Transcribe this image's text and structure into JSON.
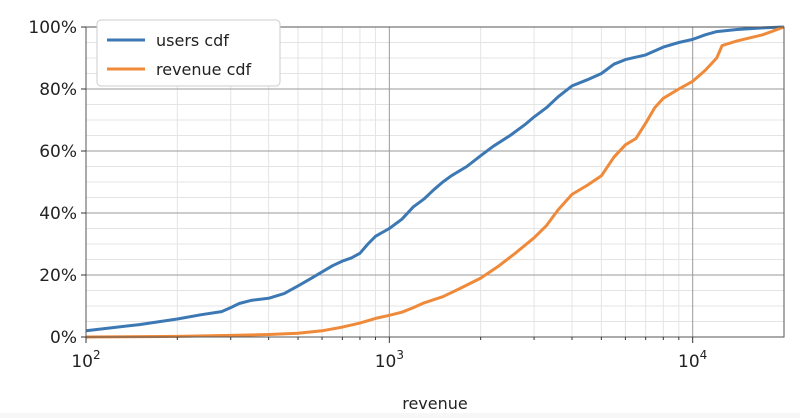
{
  "chart_data": {
    "type": "line",
    "title": "",
    "xlabel": "revenue",
    "ylabel": "",
    "x_scale": "log",
    "xlim": [
      100,
      20000
    ],
    "ylim": [
      0,
      100
    ],
    "x_ticks": [
      {
        "value": 100,
        "base": "10",
        "exp": "2"
      },
      {
        "value": 1000,
        "base": "10",
        "exp": "3"
      },
      {
        "value": 10000,
        "base": "10",
        "exp": "4"
      }
    ],
    "y_ticks": [
      {
        "value": 0,
        "label": "0%"
      },
      {
        "value": 20,
        "label": "20%"
      },
      {
        "value": 40,
        "label": "40%"
      },
      {
        "value": 60,
        "label": "60%"
      },
      {
        "value": 80,
        "label": "80%"
      },
      {
        "value": 100,
        "label": "100%"
      }
    ],
    "grid": true,
    "legend_position": "top-left",
    "series": [
      {
        "name": "users cdf",
        "color": "#3c78b4",
        "points": [
          [
            100,
            2
          ],
          [
            150,
            4
          ],
          [
            200,
            5.8
          ],
          [
            240,
            7.2
          ],
          [
            280,
            8.2
          ],
          [
            300,
            9.5
          ],
          [
            320,
            10.8
          ],
          [
            350,
            11.8
          ],
          [
            400,
            12.5
          ],
          [
            450,
            14
          ],
          [
            500,
            16.5
          ],
          [
            550,
            18.8
          ],
          [
            600,
            21
          ],
          [
            650,
            23
          ],
          [
            700,
            24.5
          ],
          [
            750,
            25.5
          ],
          [
            800,
            27
          ],
          [
            850,
            30
          ],
          [
            900,
            32.5
          ],
          [
            1000,
            35
          ],
          [
            1100,
            38
          ],
          [
            1200,
            42
          ],
          [
            1300,
            44.5
          ],
          [
            1400,
            47.5
          ],
          [
            1500,
            50
          ],
          [
            1600,
            52
          ],
          [
            1800,
            55
          ],
          [
            2000,
            58.5
          ],
          [
            2200,
            61.5
          ],
          [
            2500,
            65
          ],
          [
            2800,
            68.5
          ],
          [
            3000,
            71
          ],
          [
            3300,
            74
          ],
          [
            3600,
            77.5
          ],
          [
            4000,
            81
          ],
          [
            4500,
            83
          ],
          [
            5000,
            85
          ],
          [
            5500,
            88
          ],
          [
            6000,
            89.5
          ],
          [
            7000,
            91
          ],
          [
            8000,
            93.5
          ],
          [
            9000,
            95
          ],
          [
            10000,
            96
          ],
          [
            11000,
            97.5
          ],
          [
            12000,
            98.5
          ],
          [
            14000,
            99.2
          ],
          [
            17000,
            99.7
          ],
          [
            20000,
            100
          ]
        ]
      },
      {
        "name": "revenue cdf",
        "color": "#ef8a3a",
        "points": [
          [
            100,
            0
          ],
          [
            200,
            0.2
          ],
          [
            300,
            0.5
          ],
          [
            400,
            0.8
          ],
          [
            500,
            1.2
          ],
          [
            600,
            2
          ],
          [
            700,
            3.2
          ],
          [
            800,
            4.5
          ],
          [
            900,
            6
          ],
          [
            1000,
            7
          ],
          [
            1100,
            8
          ],
          [
            1200,
            9.5
          ],
          [
            1300,
            11
          ],
          [
            1500,
            13
          ],
          [
            1700,
            15.5
          ],
          [
            2000,
            19
          ],
          [
            2300,
            23
          ],
          [
            2600,
            27
          ],
          [
            3000,
            32
          ],
          [
            3300,
            36
          ],
          [
            3600,
            41
          ],
          [
            4000,
            46
          ],
          [
            4500,
            49
          ],
          [
            5000,
            52
          ],
          [
            5500,
            58
          ],
          [
            6000,
            62
          ],
          [
            6500,
            64
          ],
          [
            7000,
            69
          ],
          [
            7500,
            74
          ],
          [
            8000,
            77
          ],
          [
            9000,
            80
          ],
          [
            10000,
            82.5
          ],
          [
            11000,
            86
          ],
          [
            12000,
            90
          ],
          [
            12500,
            94
          ],
          [
            14000,
            95.5
          ],
          [
            17000,
            97.5
          ],
          [
            20000,
            100
          ]
        ]
      }
    ]
  }
}
